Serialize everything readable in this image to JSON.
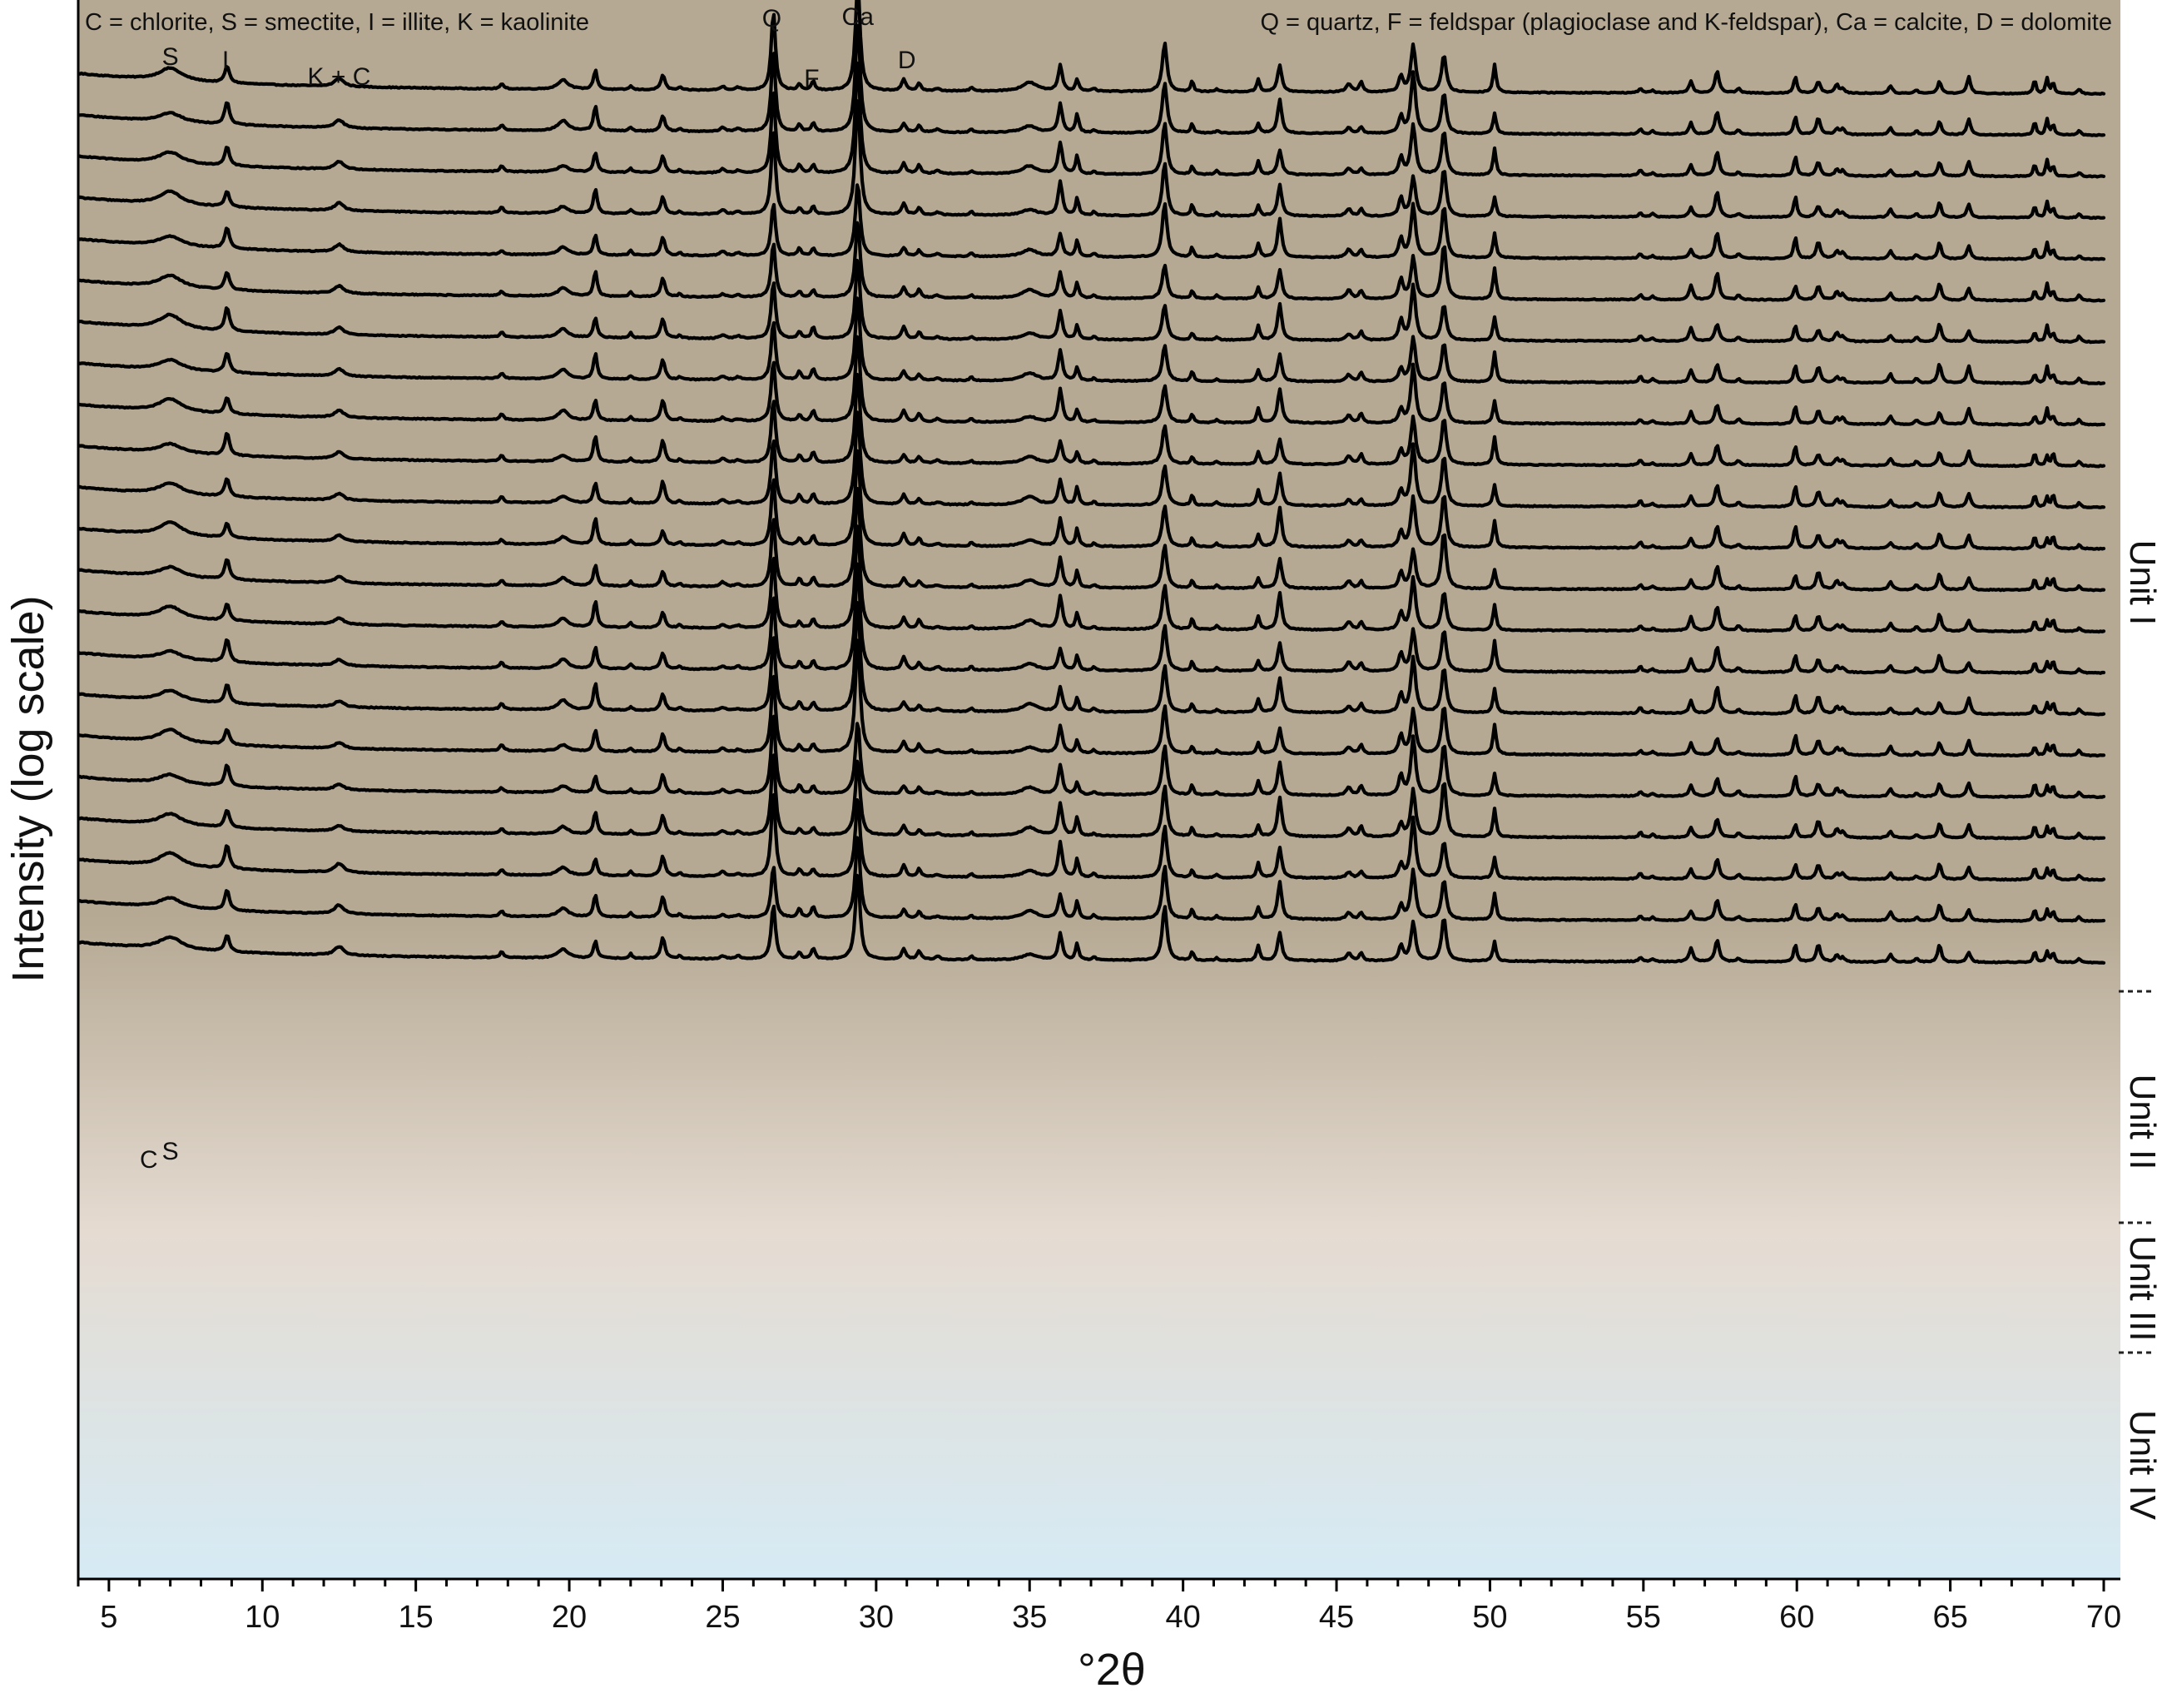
{
  "chart_data": {
    "type": "line",
    "xlabel": "°2θ",
    "ylabel": "Intensity (log scale)",
    "xlim": [
      4,
      70
    ],
    "x_ticks": [
      5,
      10,
      15,
      20,
      25,
      30,
      35,
      40,
      45,
      50,
      55,
      60,
      65,
      70
    ],
    "y_scale": "log",
    "grid": false,
    "n_traces": 22,
    "legend_left": "C = chlorite, S = smectite, I = illite, K = kaolinite",
    "legend_right": "Q = quartz, F = feldspar (plagioclase and K-feldspar), Ca = calcite, D = dolomite",
    "peak_labels": [
      {
        "text": "S",
        "x": 7.0
      },
      {
        "text": "I",
        "x": 8.8
      },
      {
        "text": "K + C",
        "x": 12.5
      },
      {
        "text": "Q",
        "x": 26.6
      },
      {
        "text": "F",
        "x": 27.9
      },
      {
        "text": "Ca",
        "x": 29.4
      },
      {
        "text": "D",
        "x": 31.0
      },
      {
        "text": "C",
        "x": 6.3
      },
      {
        "text": "S",
        "x": 7.0
      }
    ],
    "units": [
      {
        "label": "Unit I"
      },
      {
        "label": "Unit II"
      },
      {
        "label": "Unit III"
      },
      {
        "label": "Unit IV"
      }
    ],
    "background_colors": {
      "top": "#b5a993",
      "middle": "#e5dbd1",
      "bottom": "#d6ebf5"
    },
    "peaks": [
      {
        "x": 7.0,
        "h": 0.22,
        "w": 0.45,
        "mineral": "smectite"
      },
      {
        "x": 8.85,
        "h": 0.38,
        "w": 0.09,
        "mineral": "illite"
      },
      {
        "x": 12.5,
        "h": 0.14,
        "w": 0.18,
        "mineral": "kaolinite + chlorite"
      },
      {
        "x": 17.8,
        "h": 0.1,
        "w": 0.07
      },
      {
        "x": 19.8,
        "h": 0.16,
        "w": 0.2
      },
      {
        "x": 20.85,
        "h": 0.42,
        "w": 0.07,
        "mineral": "quartz"
      },
      {
        "x": 22.0,
        "h": 0.08,
        "w": 0.06
      },
      {
        "x": 23.05,
        "h": 0.35,
        "w": 0.08,
        "mineral": "calcite"
      },
      {
        "x": 23.6,
        "h": 0.06,
        "w": 0.06
      },
      {
        "x": 25.0,
        "h": 0.07,
        "w": 0.1
      },
      {
        "x": 25.5,
        "h": 0.05,
        "w": 0.1
      },
      {
        "x": 26.65,
        "h": 1.35,
        "w": 0.08,
        "mineral": "quartz"
      },
      {
        "x": 27.5,
        "h": 0.14,
        "w": 0.07,
        "mineral": "feldspar"
      },
      {
        "x": 27.95,
        "h": 0.18,
        "w": 0.07,
        "mineral": "feldspar"
      },
      {
        "x": 29.4,
        "h": 1.85,
        "w": 0.09,
        "mineral": "calcite"
      },
      {
        "x": 30.9,
        "h": 0.2,
        "w": 0.08,
        "mineral": "dolomite"
      },
      {
        "x": 31.4,
        "h": 0.14,
        "w": 0.07
      },
      {
        "x": 32.0,
        "h": 0.05,
        "w": 0.1
      },
      {
        "x": 33.1,
        "h": 0.06,
        "w": 0.06
      },
      {
        "x": 35.0,
        "h": 0.14,
        "w": 0.3
      },
      {
        "x": 36.0,
        "h": 0.55,
        "w": 0.08,
        "mineral": "calcite"
      },
      {
        "x": 36.55,
        "h": 0.3,
        "w": 0.06,
        "mineral": "quartz"
      },
      {
        "x": 37.1,
        "h": 0.06,
        "w": 0.06
      },
      {
        "x": 39.4,
        "h": 0.85,
        "w": 0.09,
        "mineral": "calcite"
      },
      {
        "x": 40.3,
        "h": 0.18,
        "w": 0.05,
        "mineral": "quartz"
      },
      {
        "x": 41.1,
        "h": 0.06,
        "w": 0.06
      },
      {
        "x": 42.45,
        "h": 0.24,
        "w": 0.06
      },
      {
        "x": 43.15,
        "h": 0.62,
        "w": 0.08,
        "mineral": "calcite"
      },
      {
        "x": 45.4,
        "h": 0.14,
        "w": 0.1
      },
      {
        "x": 45.8,
        "h": 0.16,
        "w": 0.07
      },
      {
        "x": 47.1,
        "h": 0.32,
        "w": 0.08
      },
      {
        "x": 47.5,
        "h": 0.95,
        "w": 0.09,
        "mineral": "calcite"
      },
      {
        "x": 48.5,
        "h": 0.9,
        "w": 0.09,
        "mineral": "calcite"
      },
      {
        "x": 50.15,
        "h": 0.5,
        "w": 0.06,
        "mineral": "quartz"
      },
      {
        "x": 54.9,
        "h": 0.1,
        "w": 0.06
      },
      {
        "x": 55.3,
        "h": 0.06,
        "w": 0.06
      },
      {
        "x": 56.55,
        "h": 0.22,
        "w": 0.07
      },
      {
        "x": 57.4,
        "h": 0.42,
        "w": 0.08,
        "mineral": "calcite"
      },
      {
        "x": 58.1,
        "h": 0.08,
        "w": 0.07
      },
      {
        "x": 59.95,
        "h": 0.35,
        "w": 0.06,
        "mineral": "quartz"
      },
      {
        "x": 60.7,
        "h": 0.28,
        "w": 0.08
      },
      {
        "x": 61.3,
        "h": 0.14,
        "w": 0.07
      },
      {
        "x": 61.5,
        "h": 0.1,
        "w": 0.07
      },
      {
        "x": 63.05,
        "h": 0.14,
        "w": 0.07
      },
      {
        "x": 63.9,
        "h": 0.08,
        "w": 0.06
      },
      {
        "x": 64.65,
        "h": 0.3,
        "w": 0.07,
        "mineral": "calcite"
      },
      {
        "x": 65.6,
        "h": 0.26,
        "w": 0.07
      },
      {
        "x": 67.75,
        "h": 0.22,
        "w": 0.05,
        "mineral": "quartz"
      },
      {
        "x": 68.15,
        "h": 0.26,
        "w": 0.05,
        "mineral": "quartz"
      },
      {
        "x": 68.35,
        "h": 0.22,
        "w": 0.05
      },
      {
        "x": 69.2,
        "h": 0.09,
        "w": 0.06
      }
    ]
  }
}
